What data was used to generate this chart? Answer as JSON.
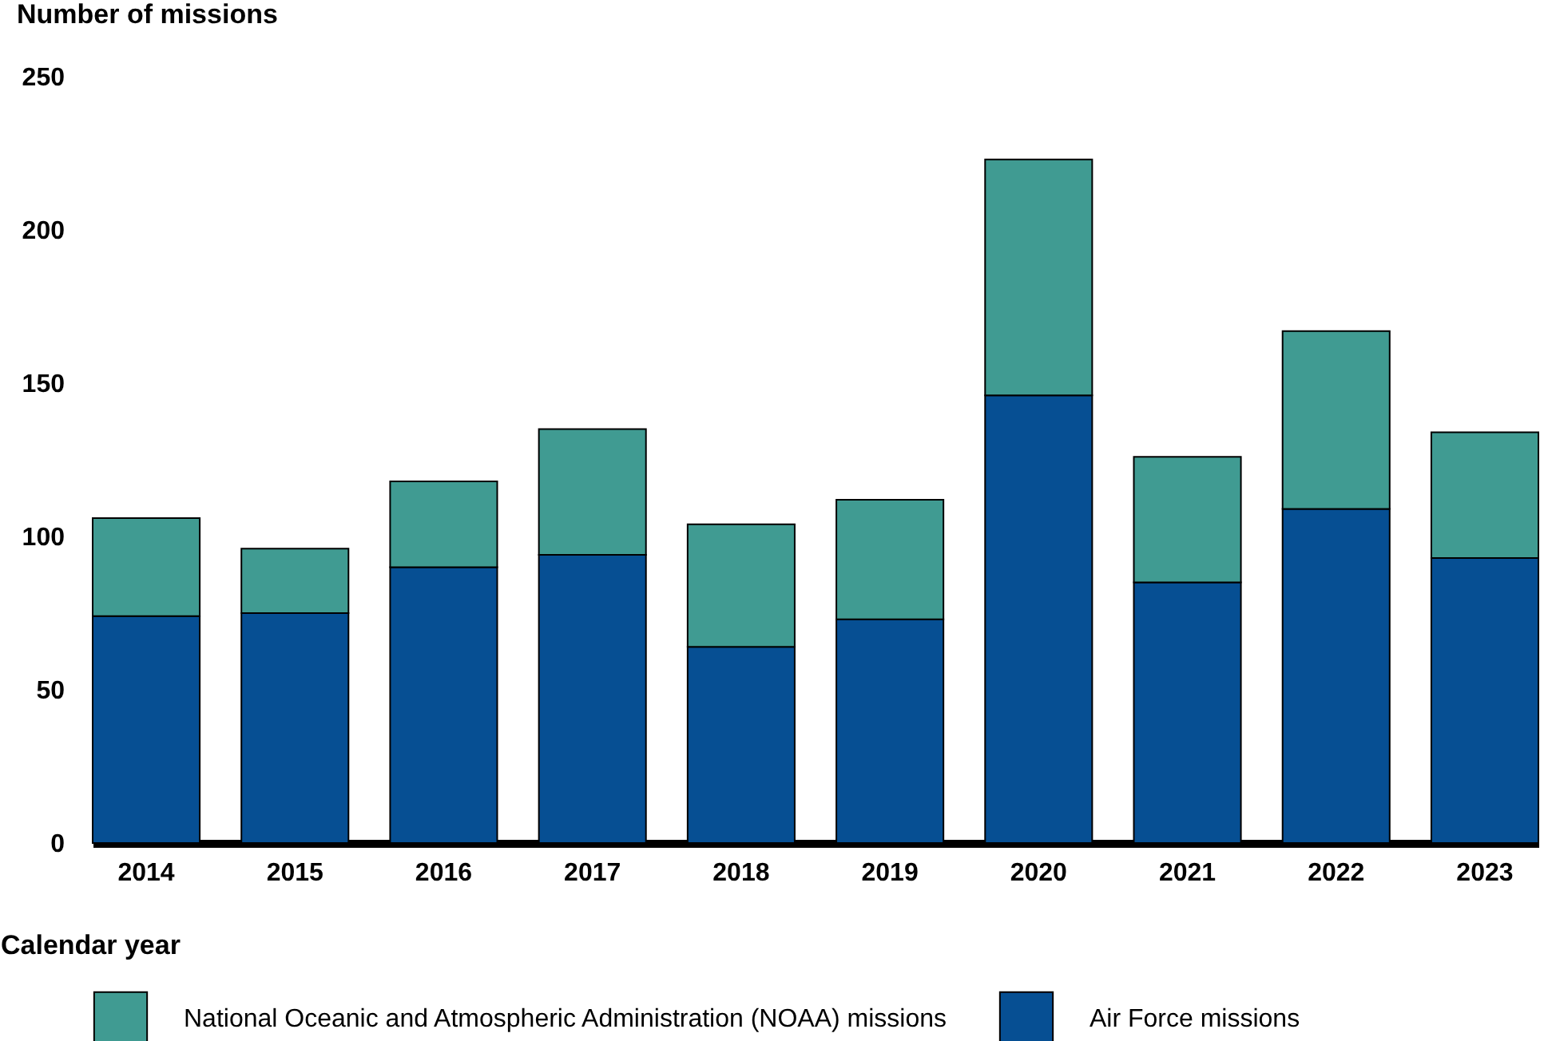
{
  "chart_data": {
    "type": "bar",
    "stacked": true,
    "xlabel": "Calendar year",
    "ylabel": "Number of missions",
    "categories": [
      "2014",
      "2015",
      "2016",
      "2017",
      "2018",
      "2019",
      "2020",
      "2021",
      "2022",
      "2023"
    ],
    "series": [
      {
        "name": "Air Force missions",
        "color": "#064f93",
        "values": [
          74,
          75,
          90,
          94,
          64,
          73,
          146,
          85,
          109,
          93
        ]
      },
      {
        "name": "National Oceanic and Atmospheric Administration (NOAA) missions",
        "color": "#409b92",
        "values": [
          32,
          21,
          28,
          41,
          40,
          39,
          77,
          41,
          58,
          41
        ]
      }
    ],
    "ylim": [
      0,
      250
    ],
    "yticks": [
      0,
      50,
      100,
      150,
      200,
      250
    ],
    "grid": false,
    "legend": "bottom"
  }
}
